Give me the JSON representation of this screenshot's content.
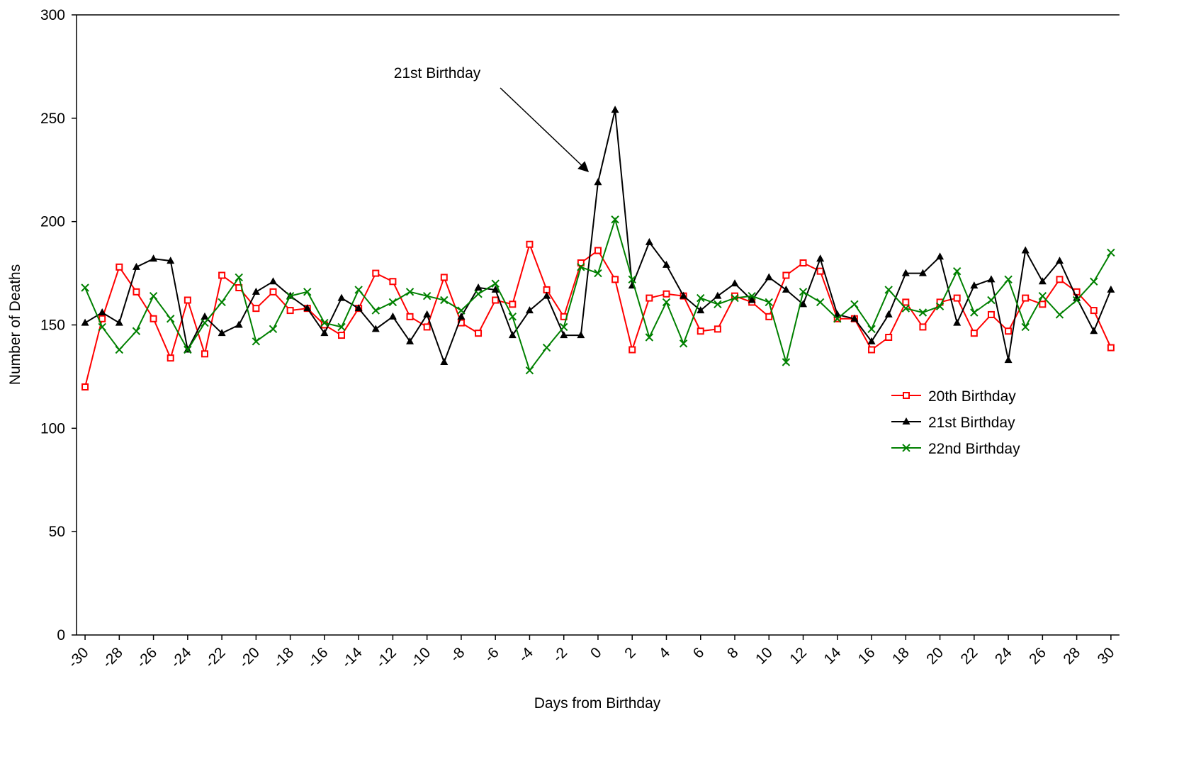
{
  "chart_data": {
    "type": "line",
    "x_label": "Days from Birthday",
    "y_label": "Number of Deaths",
    "annotation": "21st Birthday",
    "x": [
      -30,
      -29,
      -28,
      -27,
      -26,
      -25,
      -24,
      -23,
      -22,
      -21,
      -20,
      -19,
      -18,
      -17,
      -16,
      -15,
      -14,
      -13,
      -12,
      -11,
      -10,
      -9,
      -8,
      -7,
      -6,
      -5,
      -4,
      -3,
      -2,
      -1,
      0,
      1,
      2,
      3,
      4,
      5,
      6,
      7,
      8,
      9,
      10,
      11,
      12,
      13,
      14,
      15,
      16,
      17,
      18,
      19,
      20,
      21,
      22,
      23,
      24,
      25,
      26,
      27,
      28,
      29,
      30
    ],
    "xlim": [
      -30.5,
      30.5
    ],
    "xticks": [
      -30,
      -28,
      -26,
      -24,
      -22,
      -20,
      -18,
      -16,
      -14,
      -12,
      -10,
      -8,
      -6,
      -4,
      -2,
      0,
      2,
      4,
      6,
      8,
      10,
      12,
      14,
      16,
      18,
      20,
      22,
      24,
      26,
      28,
      30
    ],
    "ylim": [
      0,
      300
    ],
    "yticks": [
      0,
      50,
      100,
      150,
      200,
      250,
      300
    ],
    "grid": false,
    "legend": "right",
    "series": [
      {
        "name": "20th Birthday",
        "color": "#ff0000",
        "marker": "square",
        "values": [
          120,
          153,
          178,
          166,
          153,
          134,
          162,
          136,
          174,
          168,
          158,
          166,
          157,
          158,
          150,
          145,
          158,
          175,
          171,
          154,
          149,
          173,
          151,
          146,
          162,
          160,
          189,
          167,
          154,
          180,
          186,
          172,
          138,
          163,
          165,
          164,
          147,
          148,
          164,
          161,
          154,
          174,
          180,
          176,
          153,
          153,
          138,
          144,
          161,
          149,
          161,
          163,
          146,
          155,
          147,
          163,
          160,
          172,
          166,
          157,
          139
        ]
      },
      {
        "name": "21st Birthday",
        "color": "#000000",
        "marker": "triangle",
        "values": [
          151,
          156,
          151,
          178,
          182,
          181,
          138,
          154,
          146,
          150,
          166,
          171,
          164,
          158,
          146,
          163,
          158,
          148,
          154,
          142,
          155,
          132,
          154,
          168,
          167,
          145,
          157,
          164,
          145,
          145,
          219,
          254,
          169,
          190,
          179,
          164,
          157,
          164,
          170,
          162,
          173,
          167,
          160,
          182,
          155,
          153,
          142,
          155,
          175,
          175,
          183,
          151,
          169,
          172,
          133,
          186,
          171,
          181,
          163,
          147,
          167
        ]
      },
      {
        "name": "22nd Birthday",
        "color": "#008000",
        "marker": "x",
        "values": [
          168,
          149,
          138,
          147,
          164,
          153,
          138,
          151,
          161,
          173,
          142,
          148,
          164,
          166,
          151,
          149,
          167,
          157,
          161,
          166,
          164,
          162,
          157,
          165,
          170,
          154,
          128,
          139,
          149,
          178,
          175,
          201,
          172,
          144,
          161,
          141,
          163,
          160,
          163,
          164,
          161,
          132,
          166,
          161,
          153,
          160,
          148,
          167,
          158,
          156,
          159,
          176,
          156,
          162,
          172,
          149,
          164,
          155,
          162,
          171,
          185
        ]
      }
    ]
  }
}
